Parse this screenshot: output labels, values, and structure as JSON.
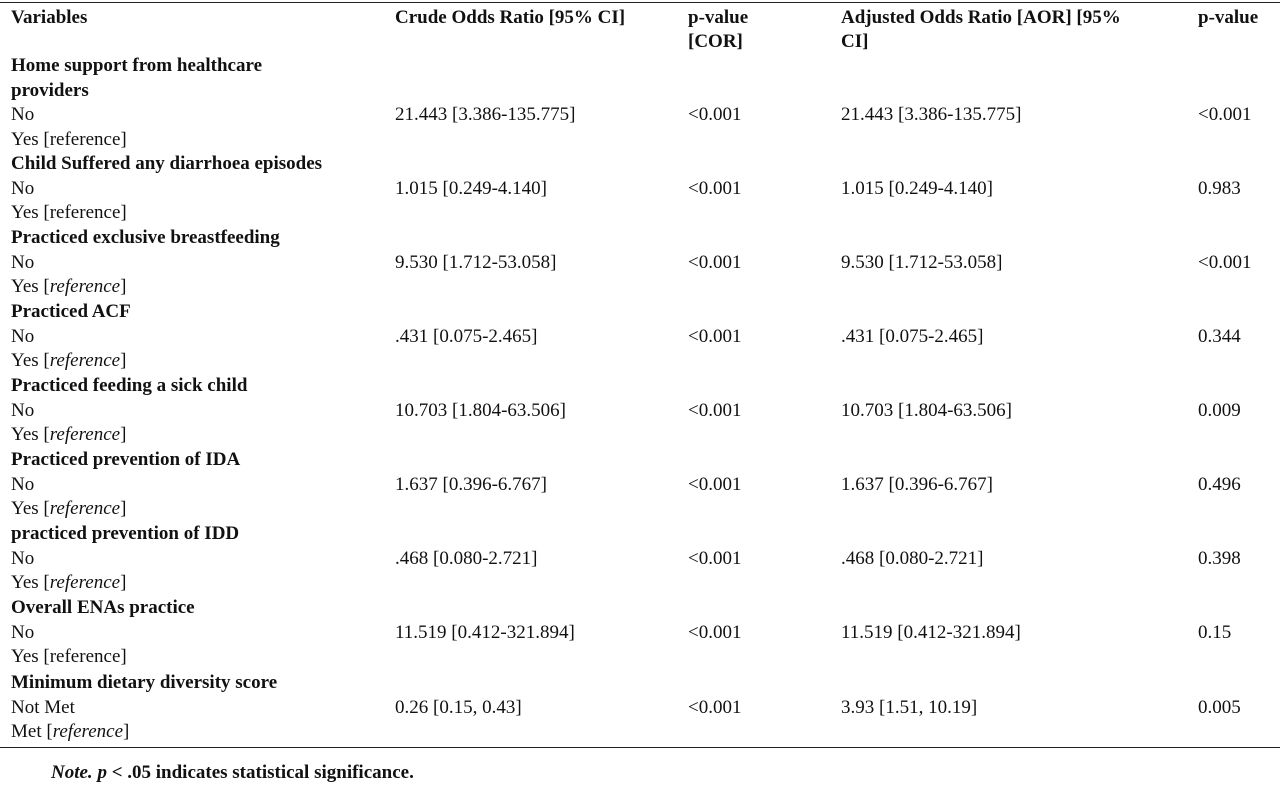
{
  "header": {
    "variables": "Variables",
    "cor": "Crude Odds Ratio [95% CI]",
    "p_cor_line1": "p-value",
    "p_cor_line2": "[COR]",
    "aor_line1": "Adjusted Odds Ratio [AOR] [95%",
    "aor_line2": "CI]",
    "p_aor": "p-value"
  },
  "rows": [
    {
      "title_l1": "Home support from healthcare",
      "title_l2": "providers",
      "cat1": "No",
      "cat2": "Yes [reference]",
      "cor": "21.443 [3.386-135.775]",
      "p_cor": "<0.001",
      "aor": "21.443 [3.386-135.775]",
      "p_aor": "<0.001"
    },
    {
      "title_l1": "Child Suffered any diarrhoea episodes",
      "cat1": "No",
      "cat2": "Yes [reference]",
      "cor": "1.015 [0.249-4.140]",
      "p_cor": "<0.001",
      "aor": "1.015 [0.249-4.140]",
      "p_aor": "0.983"
    },
    {
      "title_l1": "Practiced exclusive breastfeeding",
      "cat1": "No",
      "cat2_pre": "Yes [",
      "cat2_ref": "reference",
      "cat2_post": "]",
      "cor": "9.530 [1.712-53.058]",
      "p_cor": "<0.001",
      "aor": "9.530 [1.712-53.058]",
      "p_aor": "<0.001"
    },
    {
      "title_l1": "Practiced ACF",
      "cat1": "No",
      "cat2_pre": "Yes [",
      "cat2_ref": "reference",
      "cat2_post": "]",
      "cor": ".431 [0.075-2.465]",
      "p_cor": "<0.001",
      "aor": ".431 [0.075-2.465]",
      "p_aor": "0.344"
    },
    {
      "title_l1": "Practiced feeding a sick child",
      "cat1": "No",
      "cat2_pre": "Yes [",
      "cat2_ref": "reference",
      "cat2_post": "]",
      "cor": "10.703 [1.804-63.506]",
      "p_cor": "<0.001",
      "aor": "10.703 [1.804-63.506]",
      "p_aor": "0.009"
    },
    {
      "title_l1": "Practiced prevention of IDA",
      "cat1": "No",
      "cat2_pre": "Yes [",
      "cat2_ref": "reference",
      "cat2_post": "]",
      "cor": "1.637 [0.396-6.767]",
      "p_cor": "<0.001",
      "aor": "1.637 [0.396-6.767]",
      "p_aor": "0.496"
    },
    {
      "title_l1": "practiced prevention of IDD",
      "cat1": "No",
      "cat2_pre": "Yes [",
      "cat2_ref": "reference",
      "cat2_post": "]",
      "cor": ".468 [0.080-2.721]",
      "p_cor": "<0.001",
      "aor": ".468 [0.080-2.721]",
      "p_aor": "0.398"
    },
    {
      "title_l1": "Overall ENAs practice",
      "cat1": "No",
      "cat2": "Yes [reference]",
      "cor": "11.519 [0.412-321.894]",
      "p_cor": "<0.001",
      "aor": "11.519 [0.412-321.894]",
      "p_aor": "0.15"
    },
    {
      "title_l1": "Minimum dietary diversity score",
      "cat1": "Not Met",
      "cat2_pre": "Met [",
      "cat2_ref": "reference",
      "cat2_post": "]",
      "cor": "0.26 [0.15, 0.43]",
      "p_cor": "<0.001",
      "aor": "3.93 [1.51, 10.19]",
      "p_aor": "0.005"
    }
  ],
  "note": {
    "prefix": "Note.",
    "p": "p",
    "text": " < .05 indicates statistical significance."
  }
}
